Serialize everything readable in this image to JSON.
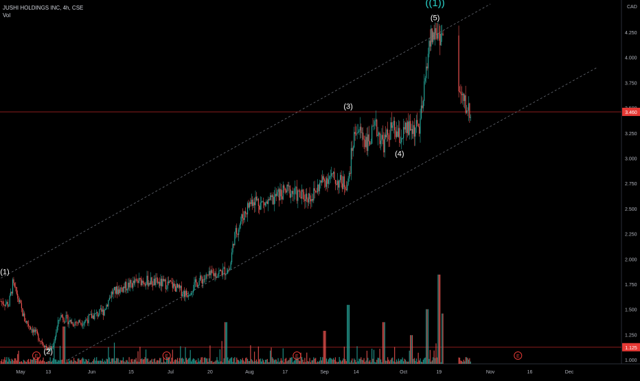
{
  "header": {
    "title": "JUSHI HOLDINGS INC, 4h, CSE",
    "vol_label": "Vol"
  },
  "colors": {
    "up": "#26a69a",
    "down": "#ef5350",
    "bg": "#000000",
    "axis_text": "#b2b5be",
    "channel": "#6b6f78",
    "hline": "#8b1c1c",
    "badge": "#e53935",
    "wave_accent": "#2ad2c9"
  },
  "chart_data": {
    "type": "candlestick",
    "symbol": "JUSHI HOLDINGS INC",
    "interval": "4h",
    "exchange": "CSE",
    "currency": "CAD",
    "y_ticks": [
      1.0,
      1.25,
      1.5,
      1.75,
      2.0,
      2.25,
      2.5,
      2.75,
      3.0,
      3.25,
      3.5,
      3.75,
      4.0,
      4.25
    ],
    "y_tick_labels": [
      "1.000",
      "1.250",
      "1.500",
      "1.750",
      "2.000",
      "2.250",
      "2.500",
      "2.750",
      "3.000",
      "3.250",
      "3.500",
      "3.750",
      "4.000",
      "4.250"
    ],
    "ylim": [
      0.96,
      4.57
    ],
    "x_ticks": [
      {
        "i": 5,
        "label": "May"
      },
      {
        "i": 12,
        "label": "13"
      },
      {
        "i": 23,
        "label": "Jun"
      },
      {
        "i": 33,
        "label": "15"
      },
      {
        "i": 43,
        "label": "Jul"
      },
      {
        "i": 53,
        "label": "20"
      },
      {
        "i": 63,
        "label": "Aug"
      },
      {
        "i": 72,
        "label": "17"
      },
      {
        "i": 82,
        "label": "Sep"
      },
      {
        "i": 90,
        "label": "14"
      },
      {
        "i": 102,
        "label": "Oct"
      },
      {
        "i": 111,
        "label": "19"
      },
      {
        "i": 124,
        "label": "Nov"
      },
      {
        "i": 134,
        "label": "16"
      },
      {
        "i": 144,
        "label": "Dec"
      }
    ],
    "x_range": [
      5,
      152
    ],
    "current_price": {
      "value": 3.46,
      "label": "3.460"
    },
    "support_line": {
      "value": 1.125,
      "label": "1.125"
    },
    "channel_upper": [
      [
        0,
        1.81
      ],
      [
        124,
        4.53
      ]
    ],
    "channel_lower": [
      [
        17,
        1.0
      ],
      [
        151,
        3.9
      ]
    ],
    "price_path": [
      [
        0,
        1.58
      ],
      [
        2,
        1.55
      ],
      [
        3,
        1.75
      ],
      [
        4,
        1.65
      ],
      [
        6,
        1.4
      ],
      [
        8,
        1.3
      ],
      [
        10,
        1.2
      ],
      [
        12,
        1.1
      ],
      [
        13,
        1.12
      ],
      [
        15,
        1.44
      ],
      [
        18,
        1.37
      ],
      [
        21,
        1.38
      ],
      [
        23,
        1.43
      ],
      [
        26,
        1.48
      ],
      [
        28,
        1.66
      ],
      [
        30,
        1.7
      ],
      [
        33,
        1.75
      ],
      [
        36,
        1.79
      ],
      [
        40,
        1.76
      ],
      [
        43,
        1.75
      ],
      [
        47,
        1.65
      ],
      [
        50,
        1.78
      ],
      [
        54,
        1.85
      ],
      [
        58,
        1.9
      ],
      [
        59,
        2.2
      ],
      [
        61,
        2.4
      ],
      [
        63,
        2.55
      ],
      [
        64,
        2.6
      ],
      [
        66,
        2.55
      ],
      [
        68,
        2.55
      ],
      [
        70,
        2.63
      ],
      [
        73,
        2.68
      ],
      [
        76,
        2.62
      ],
      [
        79,
        2.63
      ],
      [
        81,
        2.75
      ],
      [
        83,
        2.82
      ],
      [
        86,
        2.76
      ],
      [
        88,
        2.75
      ],
      [
        89,
        3.1
      ],
      [
        90,
        3.31
      ],
      [
        93,
        3.15
      ],
      [
        95,
        3.3
      ],
      [
        97,
        3.15
      ],
      [
        99,
        3.3
      ],
      [
        101,
        3.2
      ],
      [
        103,
        3.28
      ],
      [
        106,
        3.3
      ],
      [
        107,
        3.55
      ],
      [
        108,
        4.0
      ],
      [
        109,
        4.2
      ],
      [
        110,
        4.24
      ],
      [
        112,
        4.22
      ],
      [
        116,
        3.65
      ],
      [
        118,
        3.5
      ],
      [
        119,
        3.46
      ]
    ],
    "gap_bars": [
      [
        112,
        116
      ]
    ],
    "volume_spikes": [
      [
        16,
        0.4
      ],
      [
        57,
        0.45
      ],
      [
        82,
        0.35
      ],
      [
        88,
        0.65
      ],
      [
        97,
        0.45
      ],
      [
        104,
        0.3
      ],
      [
        108,
        0.6
      ],
      [
        111,
        1.0
      ],
      [
        112,
        0.55
      ],
      [
        114,
        0.35
      ]
    ],
    "earnings_markers": [
      {
        "i": 9,
        "label": "E"
      },
      {
        "i": 42,
        "label": "E"
      },
      {
        "i": 75,
        "label": "E"
      },
      {
        "i": 131,
        "label": "E"
      }
    ],
    "wave_labels": [
      {
        "text": "(1)",
        "i": 1,
        "v": 1.85
      },
      {
        "text": "(2)",
        "i": 12,
        "v": 1.06
      },
      {
        "text": "(3)",
        "i": 88,
        "v": 3.49
      },
      {
        "text": "(4)",
        "i": 101,
        "v": 3.02
      },
      {
        "text": "(5)",
        "i": 110,
        "v": 4.37
      },
      {
        "text": "((1))",
        "i": 110,
        "v": 4.51,
        "accent": true
      }
    ]
  }
}
